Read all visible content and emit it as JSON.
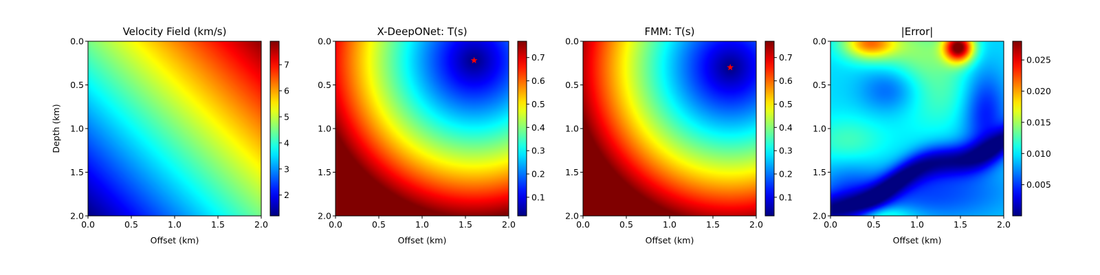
{
  "figure": {
    "panels": [
      {
        "title": "Velocity Field (km/s)",
        "xlabel": "Offset (km)",
        "ylabel": "Depth (km)",
        "colorbar_ticks": [
          "2",
          "3",
          "4",
          "5",
          "6",
          "7"
        ],
        "colorbar_values": [
          2,
          3,
          4,
          5,
          6,
          7
        ]
      },
      {
        "title": "X-DeepONet: T(s)",
        "xlabel": "Offset (km)",
        "ylabel": "",
        "colorbar_ticks": [
          "0.1",
          "0.2",
          "0.3",
          "0.4",
          "0.5",
          "0.6",
          "0.7"
        ],
        "colorbar_values": [
          0.1,
          0.2,
          0.3,
          0.4,
          0.5,
          0.6,
          0.7
        ]
      },
      {
        "title": "FMM: T(s)",
        "xlabel": "Offset (km)",
        "ylabel": "",
        "colorbar_ticks": [
          "0.1",
          "0.2",
          "0.3",
          "0.4",
          "0.5",
          "0.6",
          "0.7"
        ],
        "colorbar_values": [
          0.1,
          0.2,
          0.3,
          0.4,
          0.5,
          0.6,
          0.7
        ]
      },
      {
        "title": "|Error|",
        "xlabel": "Offset (km)",
        "ylabel": "",
        "colorbar_ticks": [
          "0.005",
          "0.010",
          "0.015",
          "0.020",
          "0.025"
        ],
        "colorbar_values": [
          0.005,
          0.01,
          0.015,
          0.02,
          0.025
        ]
      }
    ],
    "x_ticks": [
      "0.0",
      "0.5",
      "1.0",
      "1.5",
      "2.0"
    ],
    "y_ticks": [
      "0.0",
      "0.5",
      "1.0",
      "1.5",
      "2.0"
    ],
    "source_marker_color": "#ff0000",
    "colormap": "jet"
  },
  "chart_data": [
    {
      "type": "heatmap",
      "title": "Velocity Field (km/s)",
      "xlabel": "Offset (km)",
      "ylabel": "Depth (km)",
      "xlim": [
        0.0,
        2.0
      ],
      "ylim": [
        2.0,
        0.0
      ],
      "colorbar_range": [
        1.2,
        7.9
      ],
      "colormap": "jet",
      "description_values": {
        "min_at": [
          0.0,
          2.0
        ],
        "max_at": [
          2.0,
          0.0
        ]
      }
    },
    {
      "type": "heatmap",
      "title": "X-DeepONet: T(s)",
      "xlabel": "Offset (km)",
      "ylabel": "",
      "xlim": [
        0.0,
        2.0
      ],
      "ylim": [
        2.0,
        0.0
      ],
      "colorbar_range": [
        0.02,
        0.77
      ],
      "colormap": "jet",
      "source": {
        "x": 1.6,
        "y": 0.22
      }
    },
    {
      "type": "heatmap",
      "title": "FMM: T(s)",
      "xlabel": "Offset (km)",
      "ylabel": "",
      "xlim": [
        0.0,
        2.0
      ],
      "ylim": [
        2.0,
        0.0
      ],
      "colorbar_range": [
        0.02,
        0.77
      ],
      "colormap": "jet",
      "source": {
        "x": 1.7,
        "y": 0.3
      }
    },
    {
      "type": "heatmap",
      "title": "|Error|",
      "xlabel": "Offset (km)",
      "ylabel": "",
      "xlim": [
        0.0,
        2.0
      ],
      "ylim": [
        2.0,
        0.0
      ],
      "colorbar_range": [
        0.0,
        0.028
      ],
      "colormap": "jet",
      "hotspots": [
        {
          "x": 1.5,
          "y": 0.08,
          "value": 0.027
        },
        {
          "x": 0.45,
          "y": 0.05,
          "value": 0.022
        }
      ]
    }
  ]
}
